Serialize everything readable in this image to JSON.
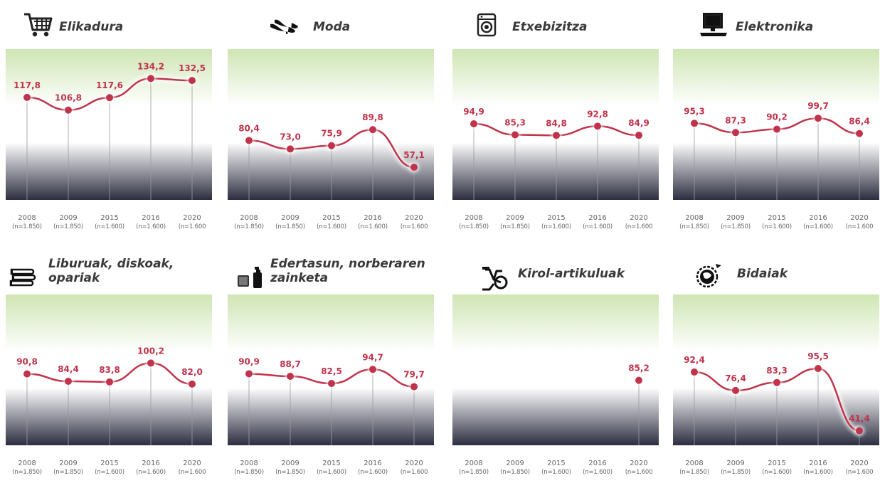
{
  "style": {
    "line_color": "#c0334b",
    "bg_top_color": "#cfe5b4",
    "bg_mid_color": "#ffffff",
    "bg_bottom_color": "#2c2e40"
  },
  "x_labels": {
    "years": [
      "2008",
      "2009",
      "2015",
      "2016",
      "2020"
    ],
    "n_counts": [
      "(n=1.850)",
      "(n=1.850)",
      "(n=1.600)",
      "(n=1.600)",
      "(n=1.600"
    ]
  },
  "panels": [
    {
      "title": "Elikadura",
      "icon": "shopping-cart-icon"
    },
    {
      "title": "Moda",
      "icon": "high-heels-icon"
    },
    {
      "title": "Etxebizitza",
      "icon": "washing-machine-icon"
    },
    {
      "title": "Elektronika",
      "icon": "computer-icon"
    },
    {
      "title": "Liburuak, diskoak, opariak",
      "icon": "books-icon"
    },
    {
      "title": "Edertasun, norberaren zainketa",
      "icon": "cosmetics-icon"
    },
    {
      "title": "Kirol-artikuluak",
      "icon": "exercise-bike-icon"
    },
    {
      "title": "Bidaiak",
      "icon": "globe-travel-icon"
    }
  ],
  "chart_data": [
    {
      "type": "line",
      "title": "Elikadura",
      "categories": [
        "2008",
        "2009",
        "2015",
        "2016",
        "2020"
      ],
      "values": [
        117.8,
        106.8,
        117.6,
        134.2,
        132.5
      ],
      "labels": [
        "117,8",
        "106,8",
        "117,6",
        "134,2",
        "132,5"
      ]
    },
    {
      "type": "line",
      "title": "Moda",
      "categories": [
        "2008",
        "2009",
        "2015",
        "2016",
        "2020"
      ],
      "values": [
        80.4,
        73.0,
        75.9,
        89.8,
        57.1
      ],
      "labels": [
        "80,4",
        "73,0",
        "75,9",
        "89,8",
        "57,1"
      ]
    },
    {
      "type": "line",
      "title": "Etxebizitza",
      "categories": [
        "2008",
        "2009",
        "2015",
        "2016",
        "2020"
      ],
      "values": [
        94.9,
        85.3,
        84.8,
        92.8,
        84.9
      ],
      "labels": [
        "94,9",
        "85,3",
        "84,8",
        "92,8",
        "84,9"
      ]
    },
    {
      "type": "line",
      "title": "Elektronika",
      "categories": [
        "2008",
        "2009",
        "2015",
        "2016",
        "2020"
      ],
      "values": [
        95.3,
        87.3,
        90.2,
        99.7,
        86.4
      ],
      "labels": [
        "95,3",
        "87,3",
        "90,2",
        "99,7",
        "86,4"
      ]
    },
    {
      "type": "line",
      "title": "Liburuak, diskoak, opariak",
      "categories": [
        "2008",
        "2009",
        "2015",
        "2016",
        "2020"
      ],
      "values": [
        90.8,
        84.4,
        83.8,
        100.2,
        82.0
      ],
      "labels": [
        "90,8",
        "84,4",
        "83,8",
        "100,2",
        "82,0"
      ]
    },
    {
      "type": "line",
      "title": "Edertasun, norberaren zainketa",
      "categories": [
        "2008",
        "2009",
        "2015",
        "2016",
        "2020"
      ],
      "values": [
        90.9,
        88.7,
        82.5,
        94.7,
        79.7
      ],
      "labels": [
        "90,9",
        "88,7",
        "82,5",
        "94,7",
        "79,7"
      ]
    },
    {
      "type": "line",
      "title": "Kirol-artikuluak",
      "categories": [
        "2008",
        "2009",
        "2015",
        "2016",
        "2020"
      ],
      "values": [
        null,
        null,
        null,
        null,
        85.2
      ],
      "labels": [
        "",
        "",
        "",
        "",
        "85,2"
      ]
    },
    {
      "type": "line",
      "title": "Bidaiak",
      "categories": [
        "2008",
        "2009",
        "2015",
        "2016",
        "2020"
      ],
      "values": [
        92.4,
        76.4,
        83.3,
        95.5,
        41.4
      ],
      "labels": [
        "92,4",
        "76,4",
        "83,3",
        "95,5",
        "41,4"
      ]
    }
  ]
}
